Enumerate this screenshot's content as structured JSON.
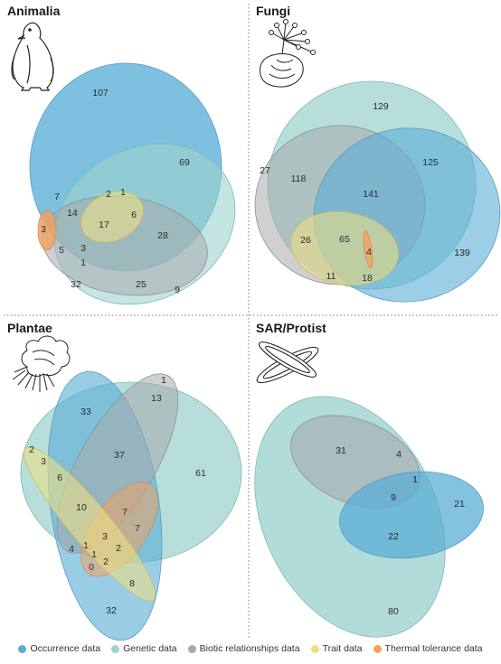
{
  "legend": [
    {
      "key": "occ",
      "label": "Occurrence data",
      "color": "#5aaed6"
    },
    {
      "key": "gen",
      "label": "Genetic data",
      "color": "#9fd3cf"
    },
    {
      "key": "bio",
      "label": "Biotic relationships data",
      "color": "#a7a9ac"
    },
    {
      "key": "trait",
      "label": "Trait data",
      "color": "#ecdf86"
    },
    {
      "key": "thermal",
      "label": "Thermal tolerance data",
      "color": "#f0a266"
    }
  ],
  "panels": [
    {
      "title": "Animalia",
      "regions": [
        {
          "value": "107"
        },
        {
          "value": "69"
        },
        {
          "value": "7"
        },
        {
          "value": "14"
        },
        {
          "value": "2"
        },
        {
          "value": "1"
        },
        {
          "value": "6"
        },
        {
          "value": "17"
        },
        {
          "value": "3"
        },
        {
          "value": "5"
        },
        {
          "value": "3"
        },
        {
          "value": "1"
        },
        {
          "value": "28"
        },
        {
          "value": "32"
        },
        {
          "value": "25"
        },
        {
          "value": "9"
        }
      ]
    },
    {
      "title": "Fungi",
      "regions": [
        {
          "value": "129"
        },
        {
          "value": "27"
        },
        {
          "value": "118"
        },
        {
          "value": "125"
        },
        {
          "value": "141"
        },
        {
          "value": "26"
        },
        {
          "value": "65"
        },
        {
          "value": "4"
        },
        {
          "value": "139"
        },
        {
          "value": "11"
        },
        {
          "value": "18"
        }
      ]
    },
    {
      "title": "Plantae",
      "regions": [
        {
          "value": "1"
        },
        {
          "value": "13"
        },
        {
          "value": "33"
        },
        {
          "value": "37"
        },
        {
          "value": "61"
        },
        {
          "value": "2"
        },
        {
          "value": "3"
        },
        {
          "value": "6"
        },
        {
          "value": "10"
        },
        {
          "value": "7"
        },
        {
          "value": "7"
        },
        {
          "value": "4"
        },
        {
          "value": "1"
        },
        {
          "value": "1"
        },
        {
          "value": "3"
        },
        {
          "value": "2"
        },
        {
          "value": "0"
        },
        {
          "value": "2"
        },
        {
          "value": "8"
        },
        {
          "value": "32"
        }
      ]
    },
    {
      "title": "SAR/Protist",
      "regions": [
        {
          "value": "31"
        },
        {
          "value": "4"
        },
        {
          "value": "1"
        },
        {
          "value": "9"
        },
        {
          "value": "21"
        },
        {
          "value": "22"
        },
        {
          "value": "80"
        }
      ]
    }
  ]
}
